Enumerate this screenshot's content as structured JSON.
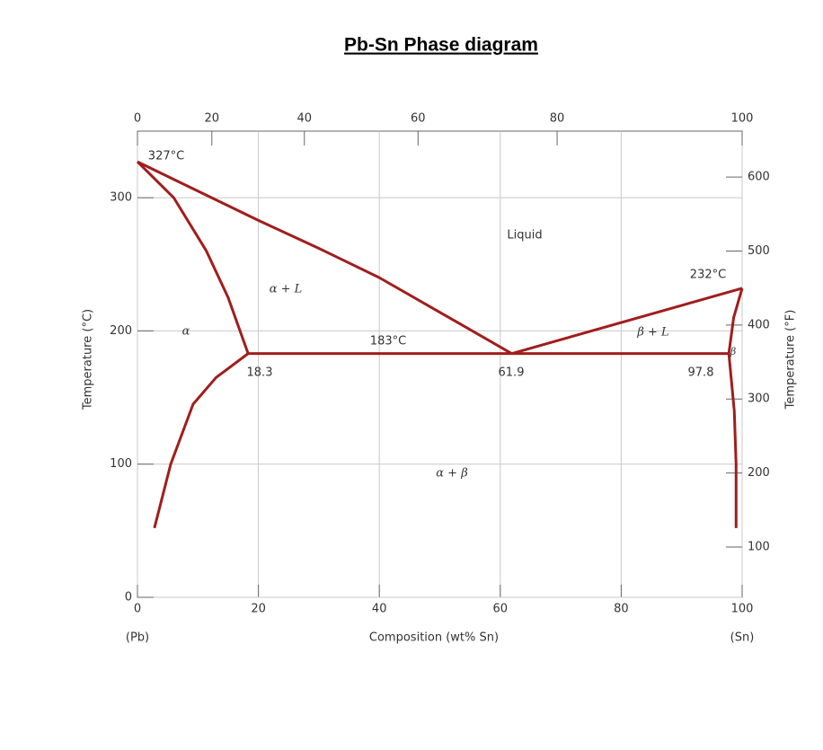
{
  "chart_data": {
    "type": "line",
    "title": "Pb-Sn Phase diagram",
    "xlabel": "Composition (wt% Sn)",
    "ylabel": "Temperature (°C)",
    "y2label": "Temperature (°F)",
    "xlim": [
      0,
      100
    ],
    "xticks": [
      0,
      20,
      40,
      60,
      80,
      100
    ],
    "ylim": [
      0,
      350
    ],
    "yticks": [
      0,
      100,
      200,
      300
    ],
    "y2lim": [
      32,
      662
    ],
    "y2ticks": [
      100,
      200,
      300,
      400,
      500,
      600
    ],
    "x2ticks": [
      0,
      {
        "value": 12.3,
        "label": "20"
      },
      {
        "value": 27.6,
        "label": "40"
      },
      {
        "value": 46.4,
        "label": "60"
      },
      {
        "value": 69.4,
        "label": "80"
      },
      100
    ],
    "grid": true,
    "color": "#a11d1d",
    "curves": [
      {
        "x": [
          0,
          10,
          20,
          30,
          40,
          50,
          61.9
        ],
        "y": [
          327,
          305,
          283,
          262,
          240,
          214,
          183
        ]
      },
      {
        "x": [
          61.9,
          100
        ],
        "y": [
          183,
          232
        ]
      },
      {
        "x": [
          0,
          6,
          11.4,
          15,
          18.3
        ],
        "y": [
          327,
          300,
          260,
          225,
          183
        ]
      },
      {
        "x": [
          18.3,
          13,
          9.2,
          5.5,
          2.8
        ],
        "y": [
          183,
          165,
          145,
          100,
          52
        ]
      },
      {
        "x": [
          18.3,
          97.8
        ],
        "y": [
          183,
          183
        ]
      },
      {
        "x": [
          97.8,
          98.6,
          100
        ],
        "y": [
          183,
          210,
          232
        ]
      },
      {
        "x": [
          97.8,
          98.7,
          99,
          99.0
        ],
        "y": [
          183,
          140,
          100,
          52
        ]
      }
    ],
    "annotations": [
      "327°C",
      "232°C",
      "183°C",
      "18.3",
      "61.9",
      "97.8",
      "Liquid",
      "α + L",
      "α",
      "β + L",
      "β",
      "α + β",
      "(Pb)",
      "(Sn)"
    ]
  }
}
